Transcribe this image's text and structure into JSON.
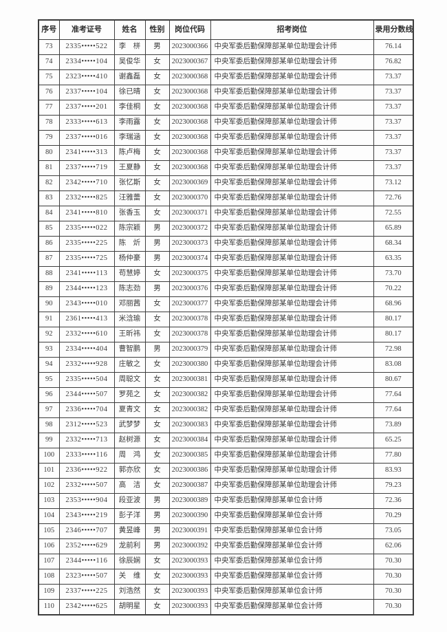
{
  "colors": {
    "border": "#3c3c3c",
    "text": "#3a3a3a",
    "background": "#fdfdfd"
  },
  "table": {
    "columns": [
      {
        "key": "index",
        "label": "序号"
      },
      {
        "key": "exam-id",
        "label": "准考证号"
      },
      {
        "key": "name",
        "label": "姓名"
      },
      {
        "key": "gender",
        "label": "性别"
      },
      {
        "key": "job-code",
        "label": "岗位代码"
      },
      {
        "key": "job-title",
        "label": "招考岗位"
      },
      {
        "key": "score",
        "label": "录用分数线"
      }
    ],
    "rows": [
      [
        "73",
        "2335•••••522",
        "李　栟",
        "男",
        "2023000366",
        "中央军委后勤保障部某单位助理会计师",
        "76.14"
      ],
      [
        "74",
        "2334•••••104",
        "吴俊华",
        "女",
        "2023000367",
        "中央军委后勤保障部某单位助理会计师",
        "76.82"
      ],
      [
        "75",
        "2323•••••410",
        "谢鑫磊",
        "女",
        "2023000368",
        "中央军委后勤保障部某单位助理会计师",
        "73.37"
      ],
      [
        "76",
        "2337•••••104",
        "徐已晴",
        "女",
        "2023000368",
        "中央军委后勤保障部某单位助理会计师",
        "73.37"
      ],
      [
        "77",
        "2337•••••201",
        "李佳桐",
        "女",
        "2023000368",
        "中央军委后勤保障部某单位助理会计师",
        "73.37"
      ],
      [
        "78",
        "2333•••••613",
        "李雨露",
        "女",
        "2023000368",
        "中央军委后勤保障部某单位助理会计师",
        "73.37"
      ],
      [
        "79",
        "2337•••••016",
        "李瑞涵",
        "女",
        "2023000368",
        "中央军委后勤保障部某单位助理会计师",
        "73.37"
      ],
      [
        "80",
        "2341•••••313",
        "陈卢梅",
        "女",
        "2023000368",
        "中央军委后勤保障部某单位助理会计师",
        "73.37"
      ],
      [
        "81",
        "2337•••••719",
        "王夏静",
        "女",
        "2023000368",
        "中央军委后勤保障部某单位助理会计师",
        "73.37"
      ],
      [
        "82",
        "2342•••••710",
        "张忆斯",
        "女",
        "2023000369",
        "中央军委后勤保障部某单位助理会计师",
        "73.12"
      ],
      [
        "83",
        "2332•••••825",
        "汪雅蕾",
        "女",
        "2023000370",
        "中央军委后勤保障部某单位助理会计师",
        "72.76"
      ],
      [
        "84",
        "2341•••••810",
        "张香玉",
        "女",
        "2023000371",
        "中央军委后勤保障部某单位助理会计师",
        "72.55"
      ],
      [
        "85",
        "2335•••••022",
        "陈宗颖",
        "男",
        "2023000372",
        "中央军委后勤保障部某单位助理会计师",
        "65.89"
      ],
      [
        "86",
        "2335•••••225",
        "陈　炘",
        "男",
        "2023000373",
        "中央军委后勤保障部某单位助理会计师",
        "68.34"
      ],
      [
        "87",
        "2335•••••725",
        "杨仲豪",
        "男",
        "2023000374",
        "中央军委后勤保障部某单位助理会计师",
        "63.35"
      ],
      [
        "88",
        "2341•••••113",
        "苟慧婷",
        "女",
        "2023000375",
        "中央军委后勤保障部某单位助理会计师",
        "73.70"
      ],
      [
        "89",
        "2344•••••123",
        "陈志劲",
        "男",
        "2023000376",
        "中央军委后勤保障部某单位助理会计师",
        "70.22"
      ],
      [
        "90",
        "2343•••••010",
        "邓丽茜",
        "女",
        "2023000377",
        "中央军委后勤保障部某单位助理会计师",
        "68.96"
      ],
      [
        "91",
        "2361•••••413",
        "米浛瑜",
        "女",
        "2023000378",
        "中央军委后勤保障部某单位助理会计师",
        "80.17"
      ],
      [
        "92",
        "2332•••••610",
        "王昕祎",
        "女",
        "2023000378",
        "中央军委后勤保障部某单位助理会计师",
        "80.17"
      ],
      [
        "93",
        "2334•••••404",
        "曹智鹏",
        "男",
        "2023000379",
        "中央军委后勤保障部某单位助理会计师",
        "72.98"
      ],
      [
        "94",
        "2332•••••928",
        "庄敏之",
        "女",
        "2023000380",
        "中央军委后勤保障部某单位助理会计师",
        "83.08"
      ],
      [
        "95",
        "2335•••••504",
        "周聪文",
        "女",
        "2023000381",
        "中央军委后勤保障部某单位助理会计师",
        "80.67"
      ],
      [
        "96",
        "2344•••••507",
        "罗苑之",
        "女",
        "2023000382",
        "中央军委后勤保障部某单位助理会计师",
        "77.64"
      ],
      [
        "97",
        "2336•••••704",
        "夏青文",
        "女",
        "2023000382",
        "中央军委后勤保障部某单位助理会计师",
        "77.64"
      ],
      [
        "98",
        "2312•••••523",
        "武梦梦",
        "女",
        "2023000383",
        "中央军委后勤保障部某单位助理会计师",
        "73.89"
      ],
      [
        "99",
        "2332•••••713",
        "赵树源",
        "女",
        "2023000384",
        "中央军委后勤保障部某单位助理会计师",
        "65.25"
      ],
      [
        "100",
        "2333•••••116",
        "周　鸿",
        "女",
        "2023000385",
        "中央军委后勤保障部某单位助理会计师",
        "77.80"
      ],
      [
        "101",
        "2336•••••922",
        "郭亦欣",
        "女",
        "2023000386",
        "中央军委后勤保障部某单位助理会计师",
        "83.93"
      ],
      [
        "102",
        "2332•••••507",
        "高　洁",
        "女",
        "2023000387",
        "中央军委后勤保障部某单位助理会计师",
        "79.23"
      ],
      [
        "103",
        "2353•••••904",
        "段亚波",
        "男",
        "2023000389",
        "中央军委后勤保障部某单位会计师",
        "72.36"
      ],
      [
        "104",
        "2343•••••219",
        "彭子洋",
        "男",
        "2023000390",
        "中央军委后勤保障部某单位会计师",
        "70.29"
      ],
      [
        "105",
        "2346•••••707",
        "黄昱峰",
        "男",
        "2023000391",
        "中央军委后勤保障部某单位会计师",
        "73.05"
      ],
      [
        "106",
        "2352•••••629",
        "龙前利",
        "男",
        "2023000392",
        "中央军委后勤保障部某单位会计师",
        "62.06"
      ],
      [
        "107",
        "2344•••••116",
        "徐辰娴",
        "女",
        "2023000393",
        "中央军委后勤保障部某单位会计师",
        "70.30"
      ],
      [
        "108",
        "2323•••••507",
        "关　维",
        "女",
        "2023000393",
        "中央军委后勤保障部某单位会计师",
        "70.30"
      ],
      [
        "109",
        "2337•••••225",
        "刘浩然",
        "女",
        "2023000393",
        "中央军委后勤保障部某单位会计师",
        "70.30"
      ],
      [
        "110",
        "2342•••••625",
        "胡明星",
        "女",
        "2023000393",
        "中央军委后勤保障部某单位会计师",
        "70.30"
      ]
    ]
  }
}
